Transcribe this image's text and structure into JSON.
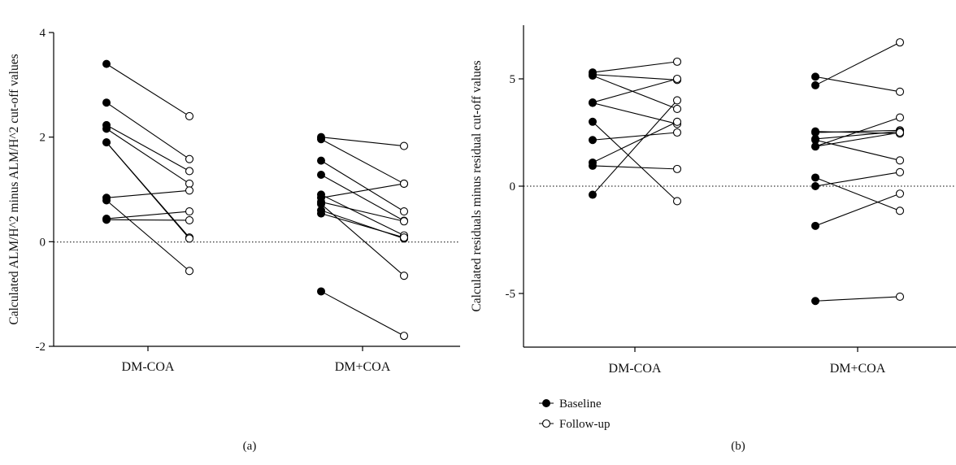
{
  "chart_data": [
    {
      "type": "scatter",
      "panel_label": "(a)",
      "ylabel": "Calculated ALM/H^2 minus ALM/H^2 cut-off values",
      "categories": [
        "DM-COA",
        "DM+COA"
      ],
      "ylim": [
        -2,
        4
      ],
      "yticks": [
        -2,
        0,
        2,
        4
      ],
      "reference_line": 0,
      "pairs": [
        {
          "category": "DM-COA",
          "baseline": [
            3.4,
            2.66,
            2.23,
            2.16,
            1.9,
            1.9,
            0.84,
            0.79,
            0.44,
            0.42
          ],
          "follow_up": [
            2.4,
            1.58,
            1.35,
            1.11,
            0.08,
            0.06,
            0.98,
            -0.56,
            0.58,
            0.41
          ]
        },
        {
          "category": "DM+COA",
          "baseline": [
            2.0,
            1.96,
            1.55,
            1.28,
            0.9,
            0.84,
            0.76,
            0.72,
            0.6,
            0.54,
            -0.95
          ],
          "follow_up": [
            1.83,
            1.11,
            0.58,
            0.4,
            0.12,
            1.11,
            0.39,
            -0.65,
            0.06,
            0.08,
            -1.8
          ]
        }
      ]
    },
    {
      "type": "scatter",
      "panel_label": "(b)",
      "ylabel": "Calculated residuals minus residual cut-off values",
      "categories": [
        "DM-COA",
        "DM+COA"
      ],
      "ylim": [
        -7.5,
        7.5
      ],
      "yticks": [
        -5,
        0,
        5
      ],
      "reference_line": 0,
      "pairs": [
        {
          "category": "DM-COA",
          "baseline": [
            5.3,
            5.2,
            5.15,
            3.9,
            3.88,
            3.0,
            2.15,
            1.1,
            0.95,
            -0.4
          ],
          "follow_up": [
            5.8,
            4.95,
            3.6,
            5.0,
            2.9,
            -0.7,
            2.5,
            3.0,
            0.8,
            4.0
          ]
        },
        {
          "category": "DM+COA",
          "baseline": [
            5.1,
            4.7,
            2.55,
            2.5,
            2.2,
            2.15,
            1.85,
            1.85,
            0.4,
            0.0,
            -1.85,
            -5.35
          ],
          "follow_up": [
            4.4,
            6.7,
            2.45,
            2.6,
            2.55,
            1.2,
            3.2,
            2.5,
            -1.15,
            0.65,
            -0.35,
            -5.15
          ]
        }
      ]
    }
  ],
  "legend": {
    "baseline": "Baseline",
    "follow_up": "Follow-up"
  },
  "colors": {
    "line": "#000000",
    "baseline_fill": "#000000",
    "follow_up_fill": "#ffffff"
  }
}
